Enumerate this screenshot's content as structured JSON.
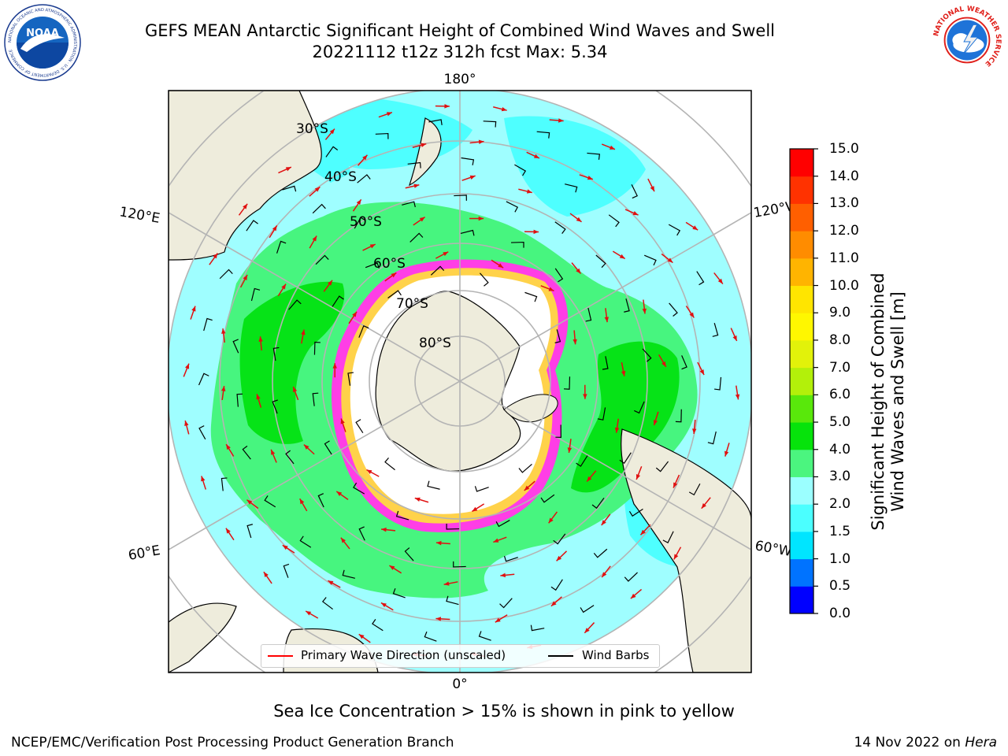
{
  "header": {
    "title_line1": "GEFS MEAN Antarctic Significant Height of Combined Wind Waves and Swell",
    "title_line2": "20221112 t12z 312h fcst   Max: 5.34"
  },
  "logos": {
    "left": "noaa-logo",
    "left_text": "NOAA",
    "left_ring_text": "NATIONAL OCEANIC AND ATMOSPHERIC ADMINISTRATION · U.S. DEPARTMENT OF COMMERCE",
    "right": "nws-logo",
    "right_ring_text": "NATIONAL WEATHER SERVICE"
  },
  "map": {
    "projection": "south-polar-stereographic",
    "longitude_labels": {
      "top": "180°",
      "bottom": "0°",
      "upper_left": "120°E",
      "upper_right": "120°W",
      "lower_left": "60°E",
      "lower_right": "60°W"
    },
    "latitude_labels": [
      "30°S",
      "40°S",
      "50°S",
      "60°S",
      "70°S",
      "80°S"
    ],
    "colors": {
      "land": "#eeecdc",
      "ocean_low": "#9ffeff",
      "ocean_mid": "#4effff",
      "band_3_4": "#47f57f",
      "band_4_5": "#06e317",
      "ice_pink": "#ff3ee6",
      "ice_yellow": "#ffd24a",
      "graticule": "#b4b4b4",
      "wave_arrow": "#ff0000",
      "wind_barb": "#000000"
    }
  },
  "colorbar": {
    "label_line1": "Significant Height of Combined",
    "label_line2": "Wind Waves and Swell [m]",
    "ticks": [
      "0.0",
      "0.5",
      "1.0",
      "1.5",
      "2.0",
      "3.0",
      "4.0",
      "5.0",
      "6.0",
      "7.0",
      "8.0",
      "9.0",
      "10.0",
      "11.0",
      "12.0",
      "13.0",
      "14.0",
      "15.0"
    ],
    "colors": [
      "#0000ff",
      "#0073ff",
      "#00e5ff",
      "#4bffff",
      "#9bffff",
      "#4bf57f",
      "#06e30b",
      "#59e80b",
      "#b3f00a",
      "#e2f20a",
      "#fff700",
      "#ffe500",
      "#ffb400",
      "#ff8c00",
      "#ff5f00",
      "#ff3200",
      "#ff0000"
    ]
  },
  "legend": {
    "item1_label": "Primary Wave Direction (unscaled)",
    "item1_color": "#ff0000",
    "item2_label": "Wind Barbs",
    "item2_color": "#000000"
  },
  "ice_note": "Sea Ice Concentration > 15% is shown in pink to yellow",
  "footer": {
    "left": "NCEP/EMC/Verification Post Processing Product Generation Branch",
    "right_prefix": "14 Nov 2022 on",
    "right_machine": "Hera"
  }
}
